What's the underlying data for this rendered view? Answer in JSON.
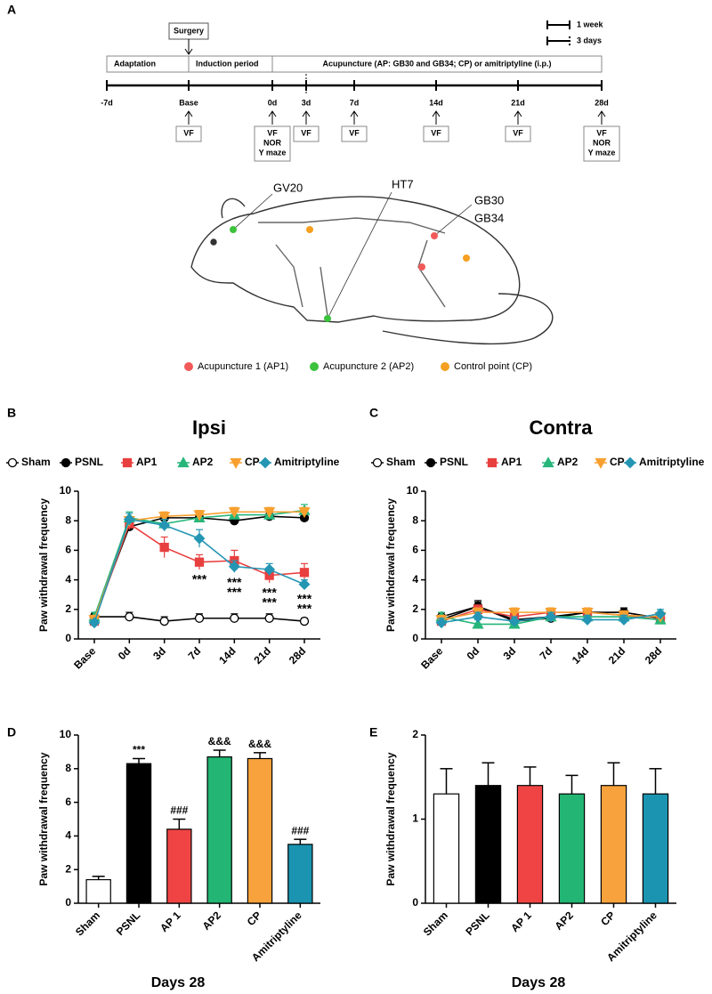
{
  "diagram": {
    "panel": "A",
    "surgery": "Surgery",
    "phases": [
      "Adaptation",
      "Induction period",
      "Acupuncture  (AP: GB30 and GB34; CP) or amitriptyline (i.p.)"
    ],
    "scale": [
      "1 week",
      "3 days"
    ],
    "timeline": [
      "-7d",
      "Base",
      "0d",
      "3d",
      "7d",
      "14d",
      "21d",
      "28d"
    ],
    "tests": [
      [
        "VF"
      ],
      [
        "VF",
        "NOR",
        "Y maze"
      ],
      [
        "VF"
      ],
      [
        "VF"
      ],
      [
        "VF"
      ],
      [
        "VF"
      ],
      [
        "VF",
        "NOR",
        "Y maze"
      ]
    ],
    "points": [
      "GV20",
      "HT7",
      "GB30",
      "GB34"
    ],
    "legend": [
      {
        "name": "Acupuncture 1 (AP1)",
        "color": "#f25a5a"
      },
      {
        "name": "Acupuncture 2 (AP2)",
        "color": "#3cc23c"
      },
      {
        "name": "Control point (CP)",
        "color": "#f5a020"
      }
    ]
  },
  "chart_data": [
    {
      "type": "line",
      "panel": "B",
      "title": "Ipsi",
      "ylabel": "Paw withdrawal frequency",
      "categories": [
        "Base",
        "0d",
        "3d",
        "7d",
        "14d",
        "21d",
        "28d"
      ],
      "ylim": [
        0,
        10
      ],
      "yticks": [
        0,
        2,
        4,
        6,
        8,
        10
      ],
      "series": [
        {
          "name": "Sham",
          "color": "#000000",
          "marker": "open-circle",
          "values": [
            1.5,
            1.5,
            1.2,
            1.4,
            1.4,
            1.4,
            1.2
          ],
          "errors": [
            0.3,
            0.3,
            0.3,
            0.3,
            0.3,
            0.3,
            0.2
          ]
        },
        {
          "name": "PSNL",
          "color": "#000000",
          "marker": "circle",
          "values": [
            1.4,
            7.6,
            8.2,
            8.2,
            8.0,
            8.3,
            8.2
          ],
          "errors": [
            0.3,
            0.3,
            0.3,
            0.3,
            0.2,
            0.2,
            0.2
          ]
        },
        {
          "name": "AP1",
          "color": "#e8403f",
          "marker": "square",
          "values": [
            1.2,
            7.8,
            6.2,
            5.2,
            5.3,
            4.3,
            4.5
          ],
          "errors": [
            0.3,
            0.4,
            0.7,
            0.5,
            0.7,
            0.5,
            0.6
          ],
          "significance": [
            null,
            null,
            null,
            "***",
            "***",
            "***",
            "***"
          ]
        },
        {
          "name": "AP2",
          "color": "#26b67a",
          "marker": "triangle",
          "values": [
            1.5,
            8.2,
            7.8,
            8.2,
            8.4,
            8.4,
            8.7
          ],
          "errors": [
            0.3,
            0.4,
            0.3,
            0.3,
            0.3,
            0.3,
            0.4
          ]
        },
        {
          "name": "CP",
          "color": "#f7a030",
          "marker": "down-triangle",
          "values": [
            1.3,
            8.0,
            8.3,
            8.4,
            8.6,
            8.6,
            8.6
          ],
          "errors": [
            0.3,
            0.3,
            0.3,
            0.3,
            0.3,
            0.3,
            0.3
          ]
        },
        {
          "name": "Amitriptyline",
          "color": "#2496b3",
          "marker": "diamond",
          "values": [
            1.1,
            8.1,
            7.7,
            6.8,
            4.9,
            4.7,
            3.7
          ],
          "errors": [
            0.2,
            0.4,
            0.4,
            0.6,
            0.4,
            0.4,
            0.3
          ],
          "significance": [
            null,
            null,
            null,
            null,
            "***",
            "***",
            "***"
          ]
        }
      ]
    },
    {
      "type": "line",
      "panel": "C",
      "title": "Contra",
      "ylabel": "Paw withdrawal frequency",
      "categories": [
        "Base",
        "0d",
        "3d",
        "7d",
        "14d",
        "21d",
        "28d"
      ],
      "ylim": [
        0,
        10
      ],
      "yticks": [
        0,
        2,
        4,
        6,
        8,
        10
      ],
      "series": [
        {
          "name": "Sham",
          "color": "#000000",
          "marker": "open-circle",
          "values": [
            1.5,
            2.2,
            1.2,
            1.4,
            1.8,
            1.8,
            1.4
          ],
          "errors": [
            0.3,
            0.3,
            0.3,
            0.3,
            0.3,
            0.3,
            0.3
          ]
        },
        {
          "name": "PSNL",
          "color": "#000000",
          "marker": "circle",
          "values": [
            1.3,
            2.2,
            1.3,
            1.5,
            1.8,
            1.8,
            1.4
          ],
          "errors": [
            0.3,
            0.4,
            0.3,
            0.3,
            0.3,
            0.3,
            0.3
          ]
        },
        {
          "name": "AP1",
          "color": "#e8403f",
          "marker": "square",
          "values": [
            1.2,
            2.0,
            1.5,
            1.8,
            1.8,
            1.6,
            1.3
          ],
          "errors": [
            0.3,
            0.3,
            0.3,
            0.3,
            0.3,
            0.3,
            0.3
          ]
        },
        {
          "name": "AP2",
          "color": "#26b67a",
          "marker": "triangle",
          "values": [
            1.5,
            1.0,
            1.0,
            1.5,
            1.5,
            1.5,
            1.3
          ],
          "errors": [
            0.3,
            0.3,
            0.3,
            0.3,
            0.3,
            0.3,
            0.3
          ]
        },
        {
          "name": "CP",
          "color": "#f7a030",
          "marker": "down-triangle",
          "values": [
            1.3,
            1.8,
            1.8,
            1.8,
            1.8,
            1.6,
            1.5
          ],
          "errors": [
            0.3,
            0.3,
            0.3,
            0.3,
            0.3,
            0.3,
            0.3
          ]
        },
        {
          "name": "Amitriptyline",
          "color": "#2496b3",
          "marker": "diamond",
          "values": [
            1.1,
            1.5,
            1.2,
            1.5,
            1.3,
            1.3,
            1.7
          ],
          "errors": [
            0.3,
            0.3,
            0.3,
            0.3,
            0.3,
            0.3,
            0.3
          ]
        }
      ]
    },
    {
      "type": "bar",
      "panel": "D",
      "ylabel": "Paw withdrawal frequency",
      "xlabel": "Days 28",
      "categories": [
        "Sham",
        "PSNL",
        "AP 1",
        "AP2",
        "CP",
        "Amitriptyline"
      ],
      "values": [
        1.4,
        8.3,
        4.4,
        8.7,
        8.6,
        3.5
      ],
      "errors": [
        0.2,
        0.3,
        0.6,
        0.4,
        0.35,
        0.3
      ],
      "colors": [
        "#ffffff",
        "#000000",
        "#f04444",
        "#22b573",
        "#f7a23c",
        "#1a94b0"
      ],
      "annotations": [
        null,
        "***",
        "###",
        "&&&",
        "&&&",
        "###"
      ],
      "ylim": [
        0,
        10
      ],
      "yticks": [
        0,
        2,
        4,
        6,
        8,
        10
      ]
    },
    {
      "type": "bar",
      "panel": "E",
      "ylabel": "Paw withdrawal frequency",
      "xlabel": "Days 28",
      "categories": [
        "Sham",
        "PSNL",
        "AP 1",
        "AP2",
        "CP",
        "Amitriptyline"
      ],
      "values": [
        1.3,
        1.4,
        1.4,
        1.3,
        1.4,
        1.3
      ],
      "errors": [
        0.3,
        0.27,
        0.22,
        0.22,
        0.27,
        0.3
      ],
      "colors": [
        "#ffffff",
        "#000000",
        "#f04444",
        "#22b573",
        "#f7a23c",
        "#1a94b0"
      ],
      "ylim": [
        0,
        2
      ],
      "yticks": [
        0,
        1,
        2
      ]
    }
  ]
}
